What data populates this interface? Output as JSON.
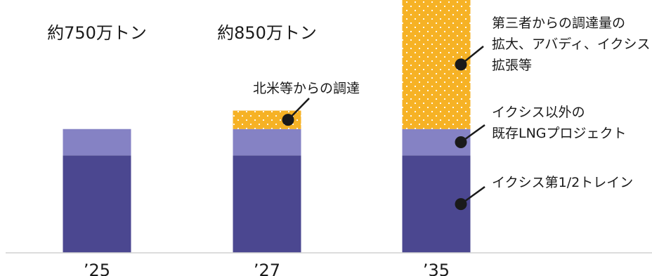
{
  "chart_data": {
    "type": "bar",
    "stacked": true,
    "categories": [
      "’25",
      "’27",
      "’35"
    ],
    "series": [
      {
        "key": "ichthys12",
        "values": [
          370,
          370,
          370
        ],
        "color": "#4b4790",
        "pattern": "solid"
      },
      {
        "key": "existing",
        "values": [
          100,
          100,
          100
        ],
        "color": "#8582c4",
        "pattern": "solid"
      },
      {
        "key": "procurement",
        "values": [
          0,
          70,
          490
        ],
        "color": "#f6b225",
        "pattern": "white-dots"
      }
    ],
    "totals": [
      "約750万トン",
      "約850万トン",
      ""
    ],
    "annotations": [
      {
        "series": "procurement",
        "bar": 1,
        "lines": [
          "北米等からの調達"
        ]
      },
      {
        "series": "procurement",
        "bar": 2,
        "lines": [
          "第三者からの調達量の",
          "拡大、アバディ、イクシス",
          "拡張等"
        ]
      },
      {
        "series": "existing",
        "bar": 2,
        "lines": [
          "イクシス以外の",
          "既存LNGプロジェクト"
        ]
      },
      {
        "series": "ichthys12",
        "bar": 2,
        "lines": [
          "イクシス第1/2トレイン"
        ]
      }
    ],
    "ylim": [
      0,
      960
    ],
    "grid": false,
    "legend": "none",
    "marker_color": "#1a1a1a"
  }
}
